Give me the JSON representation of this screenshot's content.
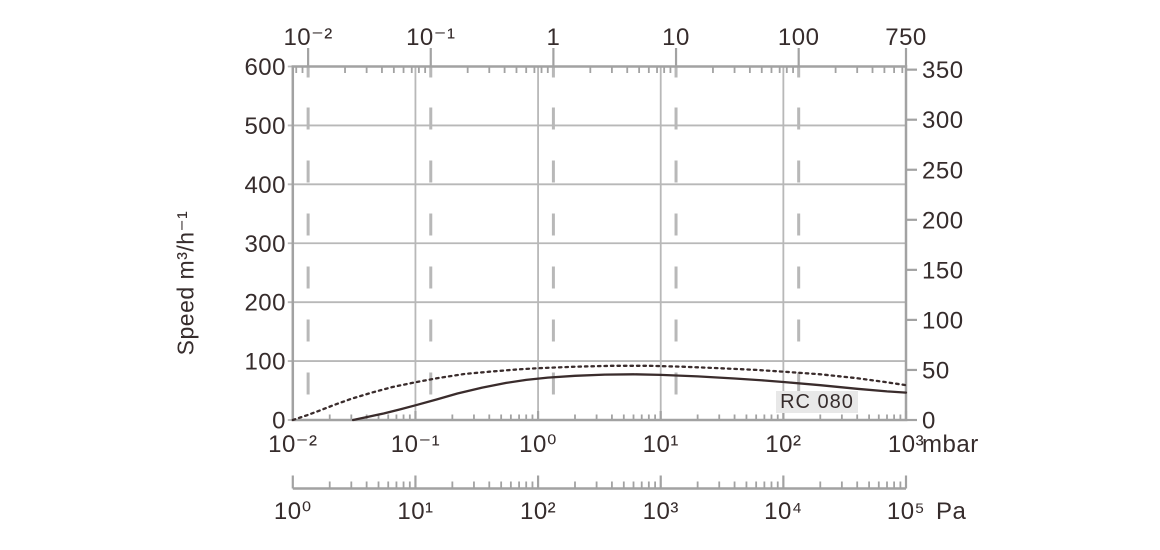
{
  "chart_data": {
    "type": "line",
    "title": "",
    "series_label": "RC 080",
    "x_scale": "log",
    "y_left": {
      "label": "Speed m³/h⁻¹",
      "min": 0,
      "max": 600,
      "step": 100,
      "tick_labels": [
        "0",
        "100",
        "200",
        "300",
        "400",
        "500",
        "600"
      ]
    },
    "y_right": {
      "min": 0,
      "max": 350,
      "step": 50,
      "tick_labels": [
        "0",
        "50",
        "100",
        "150",
        "200",
        "250",
        "300",
        "350"
      ]
    },
    "x_top": {
      "unit": "",
      "values_torr": [
        0.01,
        0.1,
        1,
        10,
        100,
        750
      ],
      "tick_labels": [
        "10⁻²",
        "10⁻¹",
        "1",
        "10",
        "100",
        "750"
      ]
    },
    "x_bottom": {
      "unit": "mbar",
      "values_mbar": [
        0.01,
        0.1,
        1,
        10,
        100,
        1000
      ],
      "tick_labels": [
        "10⁻²",
        "10⁻¹",
        "10⁰",
        "10¹",
        "10²",
        "10³"
      ]
    },
    "x_pa": {
      "unit": "Pa",
      "values_pa": [
        1,
        10,
        100,
        1000,
        10000,
        100000
      ],
      "tick_labels": [
        "10⁰",
        "10¹",
        "10²",
        "10³",
        "10⁴",
        "10⁵"
      ]
    },
    "series": [
      {
        "name": "RC 080 (dotted)",
        "style": "dotted",
        "points_mbar_m3h": [
          [
            0.01,
            0
          ],
          [
            0.013,
            8
          ],
          [
            0.017,
            17
          ],
          [
            0.022,
            26
          ],
          [
            0.03,
            36
          ],
          [
            0.045,
            47
          ],
          [
            0.065,
            56
          ],
          [
            0.1,
            64
          ],
          [
            0.15,
            71
          ],
          [
            0.25,
            78
          ],
          [
            0.4,
            82
          ],
          [
            0.7,
            86
          ],
          [
            1,
            88
          ],
          [
            2,
            90.5
          ],
          [
            4,
            92
          ],
          [
            8,
            92
          ],
          [
            15,
            90.5
          ],
          [
            30,
            88
          ],
          [
            60,
            85
          ],
          [
            100,
            82
          ],
          [
            200,
            77.5
          ],
          [
            400,
            71
          ],
          [
            700,
            64
          ],
          [
            1000,
            59
          ]
        ]
      },
      {
        "name": "RC 080 (solid)",
        "style": "solid",
        "points_mbar_m3h": [
          [
            0.031,
            0
          ],
          [
            0.04,
            5
          ],
          [
            0.055,
            11
          ],
          [
            0.075,
            18
          ],
          [
            0.1,
            25
          ],
          [
            0.15,
            35
          ],
          [
            0.22,
            45
          ],
          [
            0.35,
            55
          ],
          [
            0.55,
            63
          ],
          [
            0.8,
            68
          ],
          [
            1.2,
            72
          ],
          [
            2,
            75
          ],
          [
            3.5,
            77
          ],
          [
            6,
            77.5
          ],
          [
            10,
            76.5
          ],
          [
            20,
            74
          ],
          [
            40,
            70.5
          ],
          [
            70,
            67
          ],
          [
            100,
            64.5
          ],
          [
            200,
            59
          ],
          [
            400,
            53
          ],
          [
            700,
            48.5
          ],
          [
            1000,
            46.5
          ]
        ]
      }
    ],
    "colors": {
      "curve": "#3a2c2c",
      "text": "#362c2c",
      "grid": "#b8b8b8",
      "axis": "#a2a2a2",
      "badge_bg": "#e8e8e8"
    }
  }
}
